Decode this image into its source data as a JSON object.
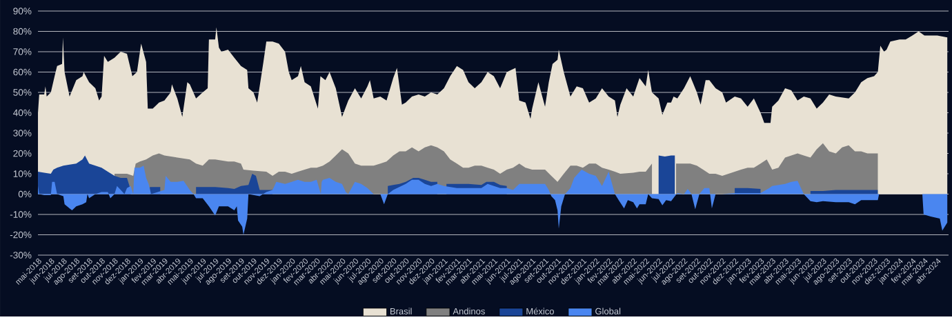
{
  "chart_data": {
    "type": "area",
    "xlim": [
      "2018-05-01",
      "2024-04-28"
    ],
    "ylim": [
      -30,
      90
    ],
    "yticks": [
      {
        "value": -30,
        "label": "-30%"
      },
      {
        "value": -20,
        "label": "-20%"
      },
      {
        "value": -10,
        "label": "-10%"
      },
      {
        "value": 0,
        "label": "0%"
      },
      {
        "value": 10,
        "label": "10%"
      },
      {
        "value": 20,
        "label": "20%"
      },
      {
        "value": 30,
        "label": "30%"
      },
      {
        "value": 40,
        "label": "40%"
      },
      {
        "value": 50,
        "label": "50%"
      },
      {
        "value": 60,
        "label": "60%"
      },
      {
        "value": 70,
        "label": "70%"
      },
      {
        "value": 80,
        "label": "80%"
      },
      {
        "value": 90,
        "label": "90%"
      }
    ],
    "xticks": [
      {
        "value": "2018-05-01",
        "label": "mai-2018"
      },
      {
        "value": "2018-06-01",
        "label": "jun-2018"
      },
      {
        "value": "2018-07-01",
        "label": "jul-2018"
      },
      {
        "value": "2018-08-01",
        "label": "ago-2018"
      },
      {
        "value": "2018-09-01",
        "label": "set-2018"
      },
      {
        "value": "2018-10-01",
        "label": "out-2018"
      },
      {
        "value": "2018-11-01",
        "label": "nov-2018"
      },
      {
        "value": "2018-12-01",
        "label": "dez-2018"
      },
      {
        "value": "2019-01-01",
        "label": "jan-2019"
      },
      {
        "value": "2019-02-01",
        "label": "fev-2019"
      },
      {
        "value": "2019-03-01",
        "label": "mar-2019"
      },
      {
        "value": "2019-04-01",
        "label": "abr-2019"
      },
      {
        "value": "2019-05-01",
        "label": "mai-2019"
      },
      {
        "value": "2019-06-01",
        "label": "jun-2019"
      },
      {
        "value": "2019-07-01",
        "label": "jul-2019"
      },
      {
        "value": "2019-08-01",
        "label": "ago-2019"
      },
      {
        "value": "2019-09-01",
        "label": "set-2019"
      },
      {
        "value": "2019-10-01",
        "label": "out-2019"
      },
      {
        "value": "2019-11-01",
        "label": "nov-2019"
      },
      {
        "value": "2019-12-01",
        "label": "dez-2019"
      },
      {
        "value": "2020-01-01",
        "label": "jan-2020"
      },
      {
        "value": "2020-02-01",
        "label": "fev-2020"
      },
      {
        "value": "2020-03-01",
        "label": "mar-2020"
      },
      {
        "value": "2020-04-01",
        "label": "abr-2020"
      },
      {
        "value": "2020-05-01",
        "label": "mai-2020"
      },
      {
        "value": "2020-06-01",
        "label": "jun-2020"
      },
      {
        "value": "2020-07-01",
        "label": "jul-2020"
      },
      {
        "value": "2020-08-01",
        "label": "ago-2020"
      },
      {
        "value": "2020-09-01",
        "label": "set-2020"
      },
      {
        "value": "2020-10-01",
        "label": "out-2020"
      },
      {
        "value": "2020-11-01",
        "label": "nov-2020"
      },
      {
        "value": "2020-12-01",
        "label": "dez-2020"
      },
      {
        "value": "2021-01-01",
        "label": "jan-2021"
      },
      {
        "value": "2021-02-01",
        "label": "fev-2021"
      },
      {
        "value": "2021-03-01",
        "label": "mar-2021"
      },
      {
        "value": "2021-04-01",
        "label": "abr-2021"
      },
      {
        "value": "2021-05-01",
        "label": "mai-2021"
      },
      {
        "value": "2021-06-01",
        "label": "jun-2021"
      },
      {
        "value": "2021-07-01",
        "label": "jul-2021"
      },
      {
        "value": "2021-08-01",
        "label": "ago-2021"
      },
      {
        "value": "2021-09-01",
        "label": "set-2021"
      },
      {
        "value": "2021-10-01",
        "label": "out-2021"
      },
      {
        "value": "2021-11-01",
        "label": "nov-2021"
      },
      {
        "value": "2021-12-01",
        "label": "dez-2021"
      },
      {
        "value": "2022-01-01",
        "label": "jan-2022"
      },
      {
        "value": "2022-02-01",
        "label": "fev-2022"
      },
      {
        "value": "2022-03-01",
        "label": "mar-2022"
      },
      {
        "value": "2022-04-01",
        "label": "abr-2022"
      },
      {
        "value": "2022-05-01",
        "label": "mai-2022"
      },
      {
        "value": "2022-06-01",
        "label": "jun-2022"
      },
      {
        "value": "2022-07-01",
        "label": "jul-2022"
      },
      {
        "value": "2022-08-01",
        "label": "ago-2022"
      },
      {
        "value": "2022-09-01",
        "label": "set-2022"
      },
      {
        "value": "2022-10-01",
        "label": "out-2022"
      },
      {
        "value": "2022-11-01",
        "label": "nov-2022"
      },
      {
        "value": "2022-12-01",
        "label": "dez-2022"
      },
      {
        "value": "2023-01-01",
        "label": "jan-2023"
      },
      {
        "value": "2023-02-01",
        "label": "fev-2023"
      },
      {
        "value": "2023-03-01",
        "label": "mar-2023"
      },
      {
        "value": "2023-04-01",
        "label": "abr-2023"
      },
      {
        "value": "2023-05-01",
        "label": "mai-2023"
      },
      {
        "value": "2023-06-01",
        "label": "jun-2023"
      },
      {
        "value": "2023-07-01",
        "label": "jul-2023"
      },
      {
        "value": "2023-08-01",
        "label": "ago-2023"
      },
      {
        "value": "2023-09-01",
        "label": "set-2023"
      },
      {
        "value": "2023-10-01",
        "label": "out-2023"
      },
      {
        "value": "2023-11-01",
        "label": "nov-2023"
      },
      {
        "value": "2023-12-01",
        "label": "dez-2023"
      },
      {
        "value": "2024-01-01",
        "label": "jan-2024"
      },
      {
        "value": "2024-02-01",
        "label": "fev-2024"
      },
      {
        "value": "2024-03-01",
        "label": "mar-2024"
      },
      {
        "value": "2024-04-01",
        "label": "abr-2024"
      }
    ],
    "grid": "y",
    "legend": "bottom",
    "series": [
      {
        "name": "Brasil",
        "color": "#e8e1d3",
        "x": [
          "2018-05-01",
          "2018-05-04",
          "2018-05-16",
          "2018-05-19",
          "2018-05-22",
          "2018-06-01",
          "2018-06-10",
          "2018-06-16",
          "2018-06-28",
          "2018-06-30",
          "2018-07-04",
          "2018-07-16",
          "2018-08-01",
          "2018-08-16",
          "2018-08-19",
          "2018-09-01",
          "2018-09-16",
          "2018-09-25",
          "2018-10-01",
          "2018-10-07",
          "2018-10-16",
          "2018-11-01",
          "2018-11-16",
          "2018-12-01",
          "2018-12-14",
          "2018-12-25",
          "2019-01-04",
          "2019-01-16",
          "2019-01-20",
          "2019-02-01",
          "2019-02-16",
          "2019-03-01",
          "2019-03-16",
          "2019-03-19",
          "2019-04-01",
          "2019-04-13",
          "2019-04-25",
          "2019-05-01",
          "2019-05-16",
          "2019-06-01",
          "2019-06-13",
          "2019-06-16",
          "2019-07-01",
          "2019-07-04",
          "2019-07-10",
          "2019-07-16",
          "2019-08-01",
          "2019-08-16",
          "2019-09-01",
          "2019-09-16",
          "2019-09-19",
          "2019-10-01",
          "2019-10-10",
          "2019-10-16",
          "2019-10-25",
          "2019-11-01",
          "2019-11-16",
          "2019-12-01",
          "2019-12-16",
          "2019-12-25",
          "2020-01-01",
          "2020-01-16",
          "2020-01-23",
          "2020-02-01",
          "2020-02-16",
          "2020-03-04",
          "2020-03-10",
          "2020-03-22",
          "2020-04-01",
          "2020-04-16",
          "2020-05-01",
          "2020-05-16",
          "2020-06-01",
          "2020-06-16",
          "2020-07-01",
          "2020-07-07",
          "2020-07-16",
          "2020-08-01",
          "2020-08-16",
          "2020-09-01",
          "2020-09-10",
          "2020-09-22",
          "2020-10-01",
          "2020-10-16",
          "2020-11-01",
          "2020-11-16",
          "2020-12-01",
          "2020-12-16",
          "2021-01-01",
          "2021-01-16",
          "2021-02-01",
          "2021-02-16",
          "2021-03-01",
          "2021-03-16",
          "2021-04-01",
          "2021-04-16",
          "2021-05-01",
          "2021-05-16",
          "2021-06-01",
          "2021-06-22",
          "2021-07-01",
          "2021-07-16",
          "2021-07-28",
          "2021-08-01",
          "2021-08-16",
          "2021-09-01",
          "2021-09-10",
          "2021-09-19",
          "2021-10-01",
          "2021-10-04",
          "2021-10-16",
          "2021-11-01",
          "2021-11-16",
          "2021-12-01",
          "2021-12-16",
          "2022-01-01",
          "2022-01-16",
          "2022-02-01",
          "2022-02-16",
          "2022-02-22",
          "2022-03-01",
          "2022-03-16",
          "2022-04-01",
          "2022-04-16",
          "2022-05-01",
          "2022-05-07",
          "2022-05-16",
          "2022-06-01",
          "2022-06-10",
          "2022-06-22",
          "2022-07-01",
          "2022-07-07",
          "2022-07-16",
          "2022-08-01",
          "2022-08-16",
          "2022-09-01",
          "2022-09-10",
          "2022-09-22",
          "2022-10-01",
          "2022-10-16",
          "2022-11-01",
          "2022-11-10",
          "2022-12-01",
          "2022-12-16",
          "2023-01-01",
          "2023-01-16",
          "2023-02-01",
          "2023-02-10",
          "2023-02-25",
          "2023-03-01",
          "2023-03-16",
          "2023-04-01",
          "2023-04-16",
          "2023-05-01",
          "2023-05-16",
          "2023-06-01",
          "2023-06-16",
          "2023-07-01",
          "2023-07-16",
          "2023-08-01",
          "2023-09-01",
          "2023-09-16",
          "2023-10-01",
          "2023-10-16",
          "2023-11-01",
          "2023-11-10",
          "2023-11-16",
          "2023-11-25",
          "2023-12-01",
          "2023-12-10",
          "2024-01-01",
          "2024-01-16",
          "2024-02-01",
          "2024-02-16",
          "2024-03-01",
          "2024-03-16",
          "2024-04-01",
          "2024-04-25"
        ],
        "values": [
          40,
          49,
          49,
          53,
          48,
          50,
          58,
          63,
          64,
          77,
          60,
          48,
          56,
          58,
          60,
          55,
          52,
          46,
          48,
          68,
          65,
          67,
          70,
          69,
          58,
          60,
          74,
          65,
          42,
          42,
          45,
          46,
          50,
          54,
          47,
          38,
          55,
          54,
          47,
          50,
          52,
          76,
          76,
          82,
          72,
          70,
          71,
          67,
          63,
          61,
          52,
          50,
          45,
          53,
          65,
          75,
          75,
          74,
          70,
          60,
          56,
          58,
          63,
          55,
          53,
          42,
          58,
          56,
          60,
          52,
          38,
          46,
          52,
          47,
          53,
          56,
          47,
          48,
          46,
          57,
          62,
          44,
          45,
          48,
          49,
          48,
          50,
          49,
          52,
          58,
          63,
          61,
          55,
          52,
          55,
          60,
          58,
          52,
          60,
          62,
          46,
          45,
          37,
          42,
          55,
          43,
          55,
          64,
          66,
          71,
          60,
          48,
          53,
          52,
          45,
          47,
          52,
          48,
          46,
          38,
          44,
          52,
          48,
          57,
          53,
          61,
          50,
          47,
          39,
          45,
          45,
          48,
          47,
          52,
          58,
          50,
          44,
          56,
          56,
          52,
          50,
          45,
          48,
          47,
          43,
          47,
          40,
          35,
          35,
          43,
          46,
          52,
          51,
          46,
          48,
          47,
          42,
          45,
          49,
          48,
          47,
          50,
          55,
          57,
          58,
          60,
          73,
          70,
          71,
          75,
          76,
          76,
          78,
          80,
          78,
          78,
          78,
          77
        ]
      },
      {
        "name": "Andinos",
        "color": "#808080",
        "x": [
          "2018-11-01",
          "2018-12-01",
          "2018-12-16",
          "2018-12-22",
          "2019-01-01",
          "2019-01-16",
          "2019-02-01",
          "2019-02-16",
          "2019-03-01",
          "2019-04-01",
          "2019-05-01",
          "2019-05-16",
          "2019-06-01",
          "2019-06-16",
          "2019-07-01",
          "2019-08-01",
          "2019-08-16",
          "2019-09-01",
          "2019-09-07",
          "2019-10-01",
          "2019-11-01",
          "2019-11-16",
          "2019-12-01",
          "2019-12-16",
          "2020-01-01",
          "2020-01-16",
          "2020-02-01",
          "2020-02-16",
          "2020-03-01",
          "2020-03-16",
          "2020-04-01",
          "2020-04-16",
          "2020-05-01",
          "2020-05-16",
          "2020-06-01",
          "2020-06-16",
          "2020-07-01",
          "2020-07-16",
          "2020-08-01",
          "2020-08-16",
          "2020-09-01",
          "2020-09-16",
          "2020-10-01",
          "2020-10-16",
          "2020-11-01",
          "2020-11-16",
          "2020-12-01",
          "2020-12-16",
          "2021-01-01",
          "2021-01-16",
          "2021-02-01",
          "2021-02-16",
          "2021-03-01",
          "2021-03-16",
          "2021-04-01",
          "2021-04-16",
          "2021-05-01",
          "2021-05-16",
          "2021-06-01",
          "2021-06-16",
          "2021-07-01",
          "2021-07-16",
          "2021-08-01",
          "2021-08-16",
          "2021-09-01",
          "2021-09-16",
          "2021-10-01",
          "2021-10-16",
          "2021-11-01",
          "2021-11-16",
          "2021-12-01",
          "2021-12-16",
          "2022-01-01",
          "2022-01-16",
          "2022-02-01",
          "2022-02-16",
          "2022-03-01",
          "2022-04-01",
          "2022-04-16",
          "2022-05-01",
          "2022-05-16",
          "2022-06-10",
          "2022-07-13",
          "2022-08-01",
          "2022-08-16",
          "2022-09-01",
          "2022-09-16",
          "2022-10-01",
          "2022-10-16",
          "2022-11-01",
          "2022-11-16",
          "2022-12-01",
          "2022-12-16",
          "2023-01-01",
          "2023-01-16",
          "2023-02-01",
          "2023-02-16",
          "2023-03-01",
          "2023-03-16",
          "2023-04-01",
          "2023-04-16",
          "2023-05-01",
          "2023-05-16",
          "2023-06-01",
          "2023-06-16",
          "2023-07-01",
          "2023-07-16",
          "2023-08-01",
          "2023-08-16",
          "2023-09-01",
          "2023-09-16",
          "2023-10-01",
          "2023-10-16",
          "2023-11-01",
          "2023-11-10"
        ],
        "values": [
          10,
          10,
          9,
          15,
          16,
          17,
          19,
          20,
          19,
          18,
          17,
          15,
          14,
          17,
          17,
          16,
          16,
          15,
          12,
          11.5,
          11,
          9,
          11,
          11,
          10,
          11,
          12,
          13,
          13,
          14,
          16,
          19,
          22,
          20,
          15,
          14,
          14,
          14,
          15,
          16,
          19,
          21,
          21,
          23,
          21,
          23,
          24,
          23,
          21,
          17,
          15,
          13,
          13,
          14,
          14,
          13,
          12,
          10,
          12,
          13,
          15,
          13,
          12,
          12,
          12,
          9,
          6,
          10,
          14,
          14,
          13,
          15,
          15,
          13,
          12,
          11,
          10,
          10.5,
          11,
          11,
          15,
          null,
          15,
          15,
          15,
          14,
          12,
          10,
          10,
          9,
          10,
          11,
          12,
          13,
          13,
          15,
          17,
          12,
          13,
          18,
          19,
          20,
          19,
          18,
          22,
          25,
          21,
          20,
          23,
          24,
          21,
          21,
          20,
          20,
          20
        ]
      },
      {
        "name": "México",
        "color": "#1a4597",
        "x": [
          "2018-05-01",
          "2018-05-16",
          "2018-06-01",
          "2018-06-07",
          "2018-06-16",
          "2018-07-01",
          "2018-07-16",
          "2018-08-01",
          "2018-08-16",
          "2018-08-22",
          "2018-09-01",
          "2018-09-16",
          "2018-10-01",
          "2018-10-16",
          "2018-11-01",
          "2018-11-16",
          "2018-12-01",
          "2018-12-10",
          "2018-12-13",
          "2019-01-25",
          "2019-02-19",
          "2019-02-22",
          "2019-05-16",
          "2019-06-01",
          "2019-07-01",
          "2019-08-01",
          "2019-08-16",
          "2019-09-01",
          "2019-09-19",
          "2019-09-28",
          "2019-10-07",
          "2019-10-16",
          "2019-11-01",
          "2019-11-16",
          "2019-11-19",
          "2020-08-19",
          "2020-09-01",
          "2020-09-16",
          "2020-10-01",
          "2020-10-19",
          "2020-11-01",
          "2020-11-16",
          "2020-12-01",
          "2020-12-16",
          "2020-12-19",
          "2021-01-07",
          "2021-02-01",
          "2021-03-01",
          "2021-04-01",
          "2021-04-13",
          "2021-05-01",
          "2021-05-16",
          "2021-06-01",
          "2021-06-10",
          "2022-06-01",
          "2022-06-16",
          "2022-07-01",
          "2022-07-10",
          "2022-07-13",
          "2022-12-01",
          "2023-01-01",
          "2023-02-01",
          "2023-02-04",
          "2023-06-01",
          "2023-07-01",
          "2023-08-01",
          "2023-09-01",
          "2023-10-01",
          "2023-11-01",
          "2023-11-10"
        ],
        "values": [
          11,
          10.5,
          10,
          12,
          13,
          14,
          14.5,
          15,
          17,
          19,
          15,
          14,
          13,
          11,
          9,
          8,
          8,
          2,
          null,
          3.5,
          3.5,
          null,
          3.5,
          3.5,
          3.5,
          3,
          2.5,
          4,
          4.5,
          10,
          9,
          2,
          2,
          2,
          null,
          4,
          4.5,
          5,
          6,
          8,
          8,
          7,
          6,
          6,
          null,
          5,
          5,
          5,
          4.5,
          6,
          6,
          4.5,
          4,
          null,
          19,
          18.5,
          19,
          19,
          null,
          3,
          3,
          2.5,
          null,
          1.5,
          1.5,
          2,
          2,
          2,
          2,
          2
        ]
      },
      {
        "name": "Global",
        "color": "#4a86f0",
        "x": [
          "2018-05-01",
          "2018-05-04",
          "2018-05-16",
          "2018-06-01",
          "2018-06-04",
          "2018-06-10",
          "2018-06-16",
          "2018-07-01",
          "2018-07-04",
          "2018-07-16",
          "2018-07-22",
          "2018-08-01",
          "2018-08-16",
          "2018-08-25",
          "2018-08-28",
          "2018-09-01",
          "2018-09-16",
          "2018-10-01",
          "2018-10-16",
          "2018-10-22",
          "2018-11-01",
          "2018-11-07",
          "2018-11-16",
          "2018-11-25",
          "2018-12-01",
          "2018-12-10",
          "2018-12-16",
          "2018-12-19",
          "2019-01-01",
          "2019-01-10",
          "2019-01-16",
          "2019-01-22",
          "2019-01-28",
          "2019-03-01",
          "2019-03-04",
          "2019-03-16",
          "2019-04-01",
          "2019-04-16",
          "2019-05-01",
          "2019-05-10",
          "2019-05-16",
          "2019-06-01",
          "2019-06-16",
          "2019-07-01",
          "2019-07-10",
          "2019-08-01",
          "2019-08-16",
          "2019-08-22",
          "2019-08-25",
          "2019-09-04",
          "2019-09-07",
          "2019-09-16",
          "2019-09-19",
          "2019-10-16",
          "2019-11-01",
          "2019-11-16",
          "2019-11-25",
          "2019-12-16",
          "2020-01-01",
          "2020-01-16",
          "2020-02-01",
          "2020-02-16",
          "2020-03-01",
          "2020-03-11",
          "2020-03-13",
          "2020-03-16",
          "2020-04-01",
          "2020-04-16",
          "2020-05-01",
          "2020-05-10",
          "2020-05-16",
          "2020-06-01",
          "2020-06-16",
          "2020-07-01",
          "2020-07-16",
          "2020-08-01",
          "2020-08-10",
          "2020-08-19",
          "2020-09-01",
          "2020-10-01",
          "2020-10-16",
          "2020-11-01",
          "2020-11-16",
          "2020-12-01",
          "2020-12-16",
          "2021-01-01",
          "2021-02-01",
          "2021-03-01",
          "2021-04-01",
          "2021-04-16",
          "2021-05-01",
          "2021-05-16",
          "2021-06-01",
          "2021-06-16",
          "2021-07-01",
          "2021-08-01",
          "2021-09-01",
          "2021-09-10",
          "2021-09-16",
          "2021-09-25",
          "2021-10-01",
          "2021-10-04",
          "2021-10-10",
          "2021-10-19",
          "2021-11-01",
          "2021-11-10",
          "2021-11-28",
          "2021-12-07",
          "2021-12-16",
          "2022-01-01",
          "2022-01-16",
          "2022-02-01",
          "2022-02-16",
          "2022-02-25",
          "2022-03-10",
          "2022-03-19",
          "2022-04-01",
          "2022-04-10",
          "2022-04-16",
          "2022-05-01",
          "2022-05-07",
          "2022-05-16",
          "2022-06-01",
          "2022-06-10",
          "2022-06-19",
          "2022-07-01",
          "2022-07-16",
          "2022-08-01",
          "2022-08-10",
          "2022-08-19",
          "2022-08-28",
          "2022-09-07",
          "2022-09-19",
          "2022-10-01",
          "2022-10-07",
          "2022-10-16",
          "2022-11-01",
          "2022-12-01",
          "2023-01-01",
          "2023-02-01",
          "2023-02-22",
          "2023-03-01",
          "2023-04-01",
          "2023-04-16",
          "2023-05-01",
          "2023-05-16",
          "2023-06-01",
          "2023-06-16",
          "2023-07-01",
          "2023-08-01",
          "2023-09-01",
          "2023-09-16",
          "2023-10-01",
          "2023-11-01",
          "2023-11-10",
          "2023-11-13",
          "2024-02-25",
          "2024-02-28",
          "2024-03-16",
          "2024-04-07",
          "2024-04-13",
          "2024-04-25"
        ],
        "values": [
          4,
          0,
          -0.5,
          -0.5,
          6,
          6,
          0,
          -1,
          -5,
          -7,
          -8,
          -6,
          -5,
          -4,
          0,
          -2,
          0,
          1,
          1,
          -2,
          0,
          4,
          2,
          0,
          3,
          4,
          0,
          13,
          13,
          14,
          8,
          5,
          0,
          2,
          9,
          6,
          6,
          6.5,
          2,
          0,
          -2,
          -2,
          -6,
          -10.5,
          -6,
          -6,
          -8,
          -6,
          -13,
          -16,
          -20,
          -12,
          0,
          -1,
          1,
          2,
          6,
          5,
          6,
          7,
          6,
          6,
          7,
          0,
          6,
          7,
          8,
          6,
          5,
          1,
          0,
          6,
          5,
          3,
          0,
          0,
          -5,
          0,
          2,
          5,
          7,
          7,
          5,
          4,
          5,
          4,
          3,
          3,
          3,
          5,
          4,
          3,
          3,
          2,
          5,
          5,
          5,
          2,
          -1,
          -3,
          -8,
          -17,
          -6,
          0,
          3,
          8,
          12,
          11,
          10,
          9,
          4,
          11,
          0,
          -3,
          -7,
          -3,
          -4,
          -7,
          -5,
          -5,
          0,
          -2,
          -2.5,
          -5.5,
          -3,
          -3.5,
          0.5,
          0,
          2.5,
          0,
          -7.5,
          0,
          3,
          3,
          -7,
          0,
          0,
          0.5,
          0.5,
          0.5,
          3,
          4,
          5,
          6,
          6.5,
          0,
          -3.5,
          -4,
          -3.5,
          -4,
          -4,
          -5,
          -3,
          -3,
          -3,
          0,
          0,
          -10,
          -11,
          -12,
          -18,
          -14
        ]
      }
    ]
  }
}
